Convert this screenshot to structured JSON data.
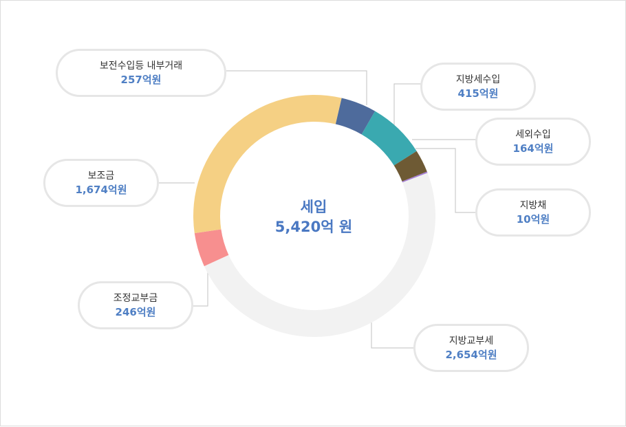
{
  "chart_data": {
    "type": "donut",
    "title": "세입",
    "total": "5,420억 원",
    "slices": [
      {
        "label": "보전수입등 내부거래",
        "value": 257,
        "display": "257억원",
        "color": "#4e6b9c"
      },
      {
        "label": "지방세수입",
        "value": 415,
        "display": "415억원",
        "color": "#3aa9b0"
      },
      {
        "label": "세외수입",
        "value": 164,
        "display": "164억원",
        "color": "#6e5a34"
      },
      {
        "label": "지방채",
        "value": 10,
        "display": "10억원",
        "color": "#a67fd6"
      },
      {
        "label": "지방교부세",
        "value": 2654,
        "display": "2,654억원",
        "color": "#f2f2f2"
      },
      {
        "label": "조정교부금",
        "value": 246,
        "display": "246억원",
        "color": "#f78f8f"
      },
      {
        "label": "보조금",
        "value": 1674,
        "display": "1,674억원",
        "color": "#f5d084"
      }
    ]
  }
}
